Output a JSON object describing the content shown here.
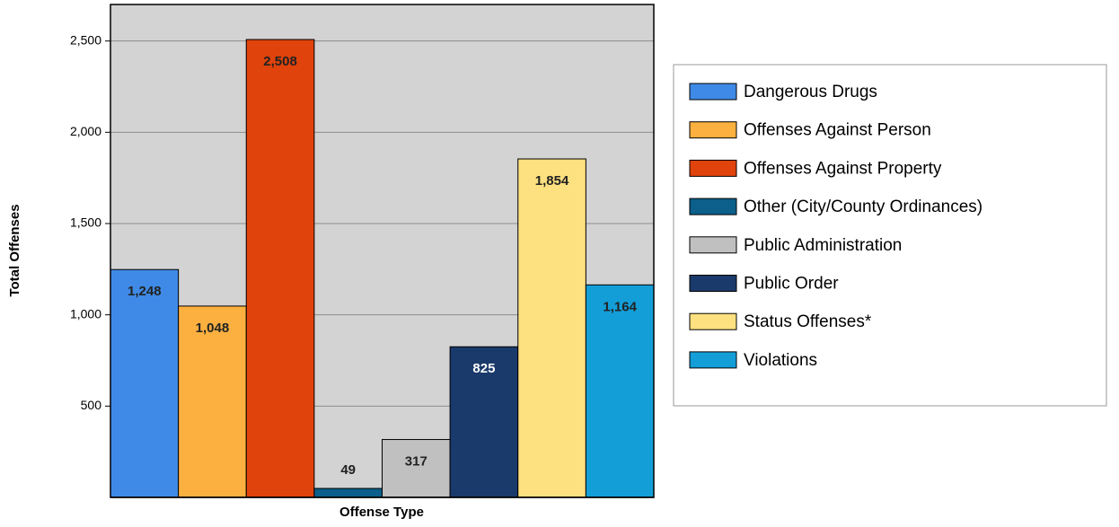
{
  "chart_data": {
    "type": "bar",
    "x_label": "Offense Type",
    "y_label": "Total Offenses",
    "categories": [
      "Dangerous Drugs",
      "Offenses Against Person",
      "Offenses Against Property",
      "Other (City/County Ordinances)",
      "Public Administration",
      "Public Order",
      "Status Offenses*",
      "Violations"
    ],
    "values": [
      1248,
      1048,
      2508,
      49,
      317,
      825,
      1854,
      1164
    ],
    "value_labels": [
      "1,248",
      "1,048",
      "2,508",
      "49",
      "317",
      "825",
      "1,854",
      "1,164"
    ],
    "colors": [
      "#3f8ae6",
      "#fbb040",
      "#e0430b",
      "#0b5f8a",
      "#c0c0c0",
      "#1a3a6b",
      "#fde07f",
      "#139ed8"
    ],
    "ylim": [
      0,
      2700
    ],
    "yticks": [
      500,
      {
        "value": 1000,
        "label": "1,000"
      },
      {
        "value": 1500,
        "label": "1,500"
      },
      {
        "value": 2000,
        "label": "2,000"
      },
      {
        "value": 2500,
        "label": "2,500"
      }
    ],
    "grid": true,
    "legend": "right"
  }
}
